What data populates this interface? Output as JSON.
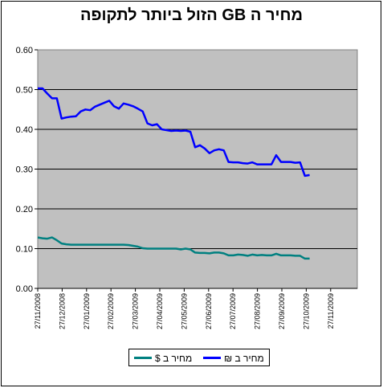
{
  "chart_data": {
    "type": "line",
    "title": "מחיר ה GB הזול ביותר לתקופה",
    "x_tick_labels": [
      "27/11/2008",
      "27/12/2008",
      "27/01/2009",
      "27/02/2009",
      "27/03/2009",
      "27/04/2009",
      "27/05/2009",
      "27/06/2009",
      "27/07/2009",
      "27/08/2009",
      "27/09/2009",
      "27/10/2009",
      "27/11/2009"
    ],
    "ylim": [
      0,
      0.6
    ],
    "y_tick_labels": [
      "0.00",
      "0.10",
      "0.20",
      "0.30",
      "0.40",
      "0.50",
      "0.60"
    ],
    "grid": "horizontal",
    "legend_position": "bottom",
    "x_range_days": [
      0,
      402
    ],
    "series": [
      {
        "name": "מחיר ב ₪",
        "color": "#0000ff",
        "points": [
          [
            0,
            0.503
          ],
          [
            6,
            0.503
          ],
          [
            12,
            0.49
          ],
          [
            18,
            0.478
          ],
          [
            24,
            0.478
          ],
          [
            30,
            0.427
          ],
          [
            36,
            0.43
          ],
          [
            42,
            0.432
          ],
          [
            48,
            0.433
          ],
          [
            54,
            0.445
          ],
          [
            60,
            0.45
          ],
          [
            66,
            0.448
          ],
          [
            72,
            0.457
          ],
          [
            78,
            0.462
          ],
          [
            84,
            0.467
          ],
          [
            90,
            0.472
          ],
          [
            96,
            0.458
          ],
          [
            102,
            0.452
          ],
          [
            108,
            0.465
          ],
          [
            114,
            0.462
          ],
          [
            120,
            0.458
          ],
          [
            126,
            0.452
          ],
          [
            132,
            0.445
          ],
          [
            138,
            0.415
          ],
          [
            144,
            0.41
          ],
          [
            150,
            0.413
          ],
          [
            156,
            0.4
          ],
          [
            162,
            0.398
          ],
          [
            168,
            0.396
          ],
          [
            174,
            0.397
          ],
          [
            180,
            0.396
          ],
          [
            186,
            0.397
          ],
          [
            192,
            0.394
          ],
          [
            198,
            0.355
          ],
          [
            204,
            0.36
          ],
          [
            210,
            0.352
          ],
          [
            216,
            0.34
          ],
          [
            222,
            0.347
          ],
          [
            228,
            0.35
          ],
          [
            234,
            0.347
          ],
          [
            240,
            0.318
          ],
          [
            246,
            0.317
          ],
          [
            252,
            0.317
          ],
          [
            258,
            0.315
          ],
          [
            264,
            0.314
          ],
          [
            270,
            0.317
          ],
          [
            276,
            0.312
          ],
          [
            282,
            0.312
          ],
          [
            288,
            0.312
          ],
          [
            294,
            0.312
          ],
          [
            300,
            0.335
          ],
          [
            306,
            0.318
          ],
          [
            312,
            0.318
          ],
          [
            318,
            0.318
          ],
          [
            324,
            0.316
          ],
          [
            330,
            0.317
          ],
          [
            336,
            0.283
          ],
          [
            342,
            0.285
          ]
        ]
      },
      {
        "name": "מחיר ב $",
        "color": "#008080",
        "points": [
          [
            0,
            0.128
          ],
          [
            6,
            0.126
          ],
          [
            12,
            0.125
          ],
          [
            18,
            0.128
          ],
          [
            24,
            0.121
          ],
          [
            30,
            0.113
          ],
          [
            36,
            0.111
          ],
          [
            42,
            0.11
          ],
          [
            48,
            0.11
          ],
          [
            54,
            0.11
          ],
          [
            60,
            0.11
          ],
          [
            66,
            0.11
          ],
          [
            72,
            0.11
          ],
          [
            78,
            0.11
          ],
          [
            84,
            0.11
          ],
          [
            90,
            0.11
          ],
          [
            96,
            0.11
          ],
          [
            102,
            0.11
          ],
          [
            108,
            0.11
          ],
          [
            114,
            0.109
          ],
          [
            120,
            0.107
          ],
          [
            126,
            0.105
          ],
          [
            132,
            0.101
          ],
          [
            138,
            0.1
          ],
          [
            144,
            0.1
          ],
          [
            150,
            0.1
          ],
          [
            156,
            0.1
          ],
          [
            162,
            0.1
          ],
          [
            168,
            0.1
          ],
          [
            174,
            0.1
          ],
          [
            180,
            0.098
          ],
          [
            186,
            0.1
          ],
          [
            192,
            0.098
          ],
          [
            198,
            0.09
          ],
          [
            204,
            0.089
          ],
          [
            210,
            0.089
          ],
          [
            216,
            0.088
          ],
          [
            222,
            0.09
          ],
          [
            228,
            0.09
          ],
          [
            234,
            0.088
          ],
          [
            240,
            0.083
          ],
          [
            246,
            0.083
          ],
          [
            252,
            0.085
          ],
          [
            258,
            0.084
          ],
          [
            264,
            0.082
          ],
          [
            270,
            0.085
          ],
          [
            276,
            0.083
          ],
          [
            282,
            0.084
          ],
          [
            288,
            0.083
          ],
          [
            294,
            0.083
          ],
          [
            300,
            0.087
          ],
          [
            306,
            0.083
          ],
          [
            312,
            0.083
          ],
          [
            318,
            0.083
          ],
          [
            324,
            0.082
          ],
          [
            330,
            0.082
          ],
          [
            336,
            0.075
          ],
          [
            342,
            0.075
          ]
        ]
      }
    ]
  }
}
